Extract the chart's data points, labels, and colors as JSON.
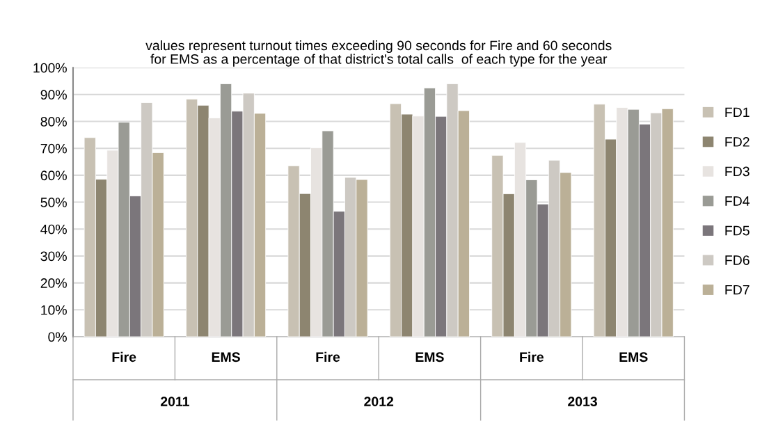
{
  "chart_data": {
    "type": "bar",
    "title": "values represent turnout times exceeding 90 seconds for Fire and 60 seconds\nfor EMS as a percentage of that district's total calls  of each type for the year",
    "categories": [
      "Fire",
      "EMS",
      "Fire",
      "EMS",
      "Fire",
      "EMS"
    ],
    "annotations": [
      "2011",
      "2012",
      "2013"
    ],
    "series": [
      {
        "name": "FD1",
        "color": "#c8c1b3",
        "values": [
          74,
          88.3,
          63.5,
          86.6,
          67.4,
          86.4
        ]
      },
      {
        "name": "FD2",
        "color": "#8d8570",
        "values": [
          58.5,
          86,
          53.2,
          82.7,
          53.1,
          73.4
        ]
      },
      {
        "name": "FD3",
        "color": "#e7e3e0",
        "values": [
          69.3,
          81.3,
          70.2,
          82,
          72.2,
          85.2
        ]
      },
      {
        "name": "FD4",
        "color": "#9a9b95",
        "values": [
          79.7,
          94,
          76.5,
          92.4,
          58.3,
          84.5
        ]
      },
      {
        "name": "FD5",
        "color": "#7b767b",
        "values": [
          52.3,
          83.8,
          46.6,
          81.9,
          49.3,
          79
        ]
      },
      {
        "name": "FD6",
        "color": "#cdc9c3",
        "values": [
          87,
          90.5,
          59.2,
          94,
          65.6,
          83.2
        ]
      },
      {
        "name": "FD7",
        "color": "#bbb097",
        "values": [
          68.4,
          83,
          58.4,
          84,
          61,
          84.7
        ]
      }
    ],
    "ylim": [
      0,
      100
    ],
    "yticks": [
      {
        "value": 0,
        "label": "0%"
      },
      {
        "value": 10,
        "label": "10%"
      },
      {
        "value": 20,
        "label": "20%"
      },
      {
        "value": 30,
        "label": "30%"
      },
      {
        "value": 40,
        "label": "40%"
      },
      {
        "value": 50,
        "label": "50%"
      },
      {
        "value": 60,
        "label": "60%"
      },
      {
        "value": 70,
        "label": "70%"
      },
      {
        "value": 80,
        "label": "80%"
      },
      {
        "value": 90,
        "label": "90%"
      },
      {
        "value": 100,
        "label": "100%"
      }
    ],
    "grid": "y",
    "legend": "right"
  }
}
